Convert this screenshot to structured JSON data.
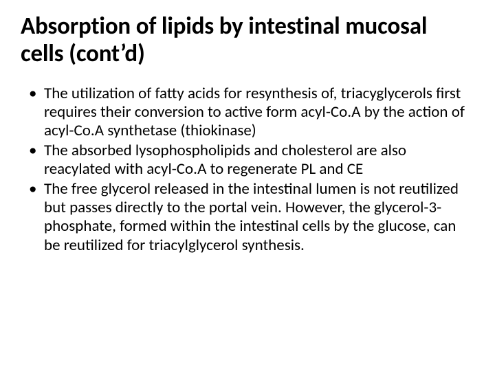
{
  "style": {
    "background_color": "#ffffff",
    "text_color": "#000000",
    "title_fontsize": 35,
    "title_weight": 700,
    "body_fontsize": 23,
    "line_height": 1.18,
    "font_family": "Calibri, 'Segoe UI', Arial, sans-serif",
    "bullet_glyph": "•",
    "slide_width": 720,
    "slide_height": 540
  },
  "title": "Absorption of lipids by intestinal mucosal cells (cont’d)",
  "bullets": [
    "The utilization of fatty acids for resynthesis of, triacyglycerols first requires their conversion to active form acyl-Co.A by the action of acyl-Co.A synthetase (thiokinase)",
    "The absorbed lysophospholipids and cholesterol are also reacylated with acyl-Co.A to regenerate PL and CE",
    "The free glycerol released in the intestinal lumen is not reutilized but passes directly to the portal vein. However, the glycerol-3-phosphate, formed within the intestinal cells by the glucose, can be reutilized for triacylglycerol synthesis."
  ]
}
